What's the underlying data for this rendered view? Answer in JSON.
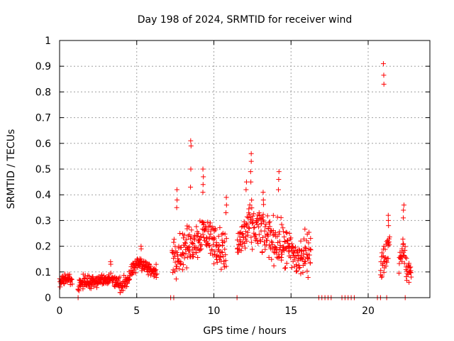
{
  "chart_data": {
    "type": "scatter",
    "title": "Day 198 of 2024, SRMTID for receiver wind",
    "xlabel": "GPS time / hours",
    "ylabel": "SRMTID / TECUs",
    "xlim": [
      0,
      24
    ],
    "ylim": [
      0,
      1
    ],
    "xticks": [
      0,
      5,
      10,
      15,
      20
    ],
    "xtick_labels": [
      "0",
      "5",
      "10",
      "15",
      "20"
    ],
    "yticks": [
      0,
      0.1,
      0.2,
      0.3,
      0.4,
      0.5,
      0.6,
      0.7,
      0.8,
      0.9,
      1
    ],
    "ytick_labels": [
      "0",
      "0.1",
      "0.2",
      "0.3",
      "0.4",
      "0.5",
      "0.6",
      "0.7",
      "0.8",
      "0.9",
      "1"
    ],
    "grid": true,
    "marker": "plus",
    "color": "#ff0000",
    "series": [
      {
        "name": "SRMTID",
        "profile": [
          [
            0.0,
            0.06
          ],
          [
            0.3,
            0.07
          ],
          [
            0.6,
            0.075
          ],
          [
            0.8,
            0.07
          ],
          [
            1.2,
            0.05
          ],
          [
            1.5,
            0.06
          ],
          [
            2.0,
            0.065
          ],
          [
            2.5,
            0.07
          ],
          [
            3.0,
            0.065
          ],
          [
            3.3,
            0.08
          ],
          [
            3.6,
            0.06
          ],
          [
            4.0,
            0.045
          ],
          [
            4.4,
            0.07
          ],
          [
            4.8,
            0.11
          ],
          [
            5.2,
            0.14
          ],
          [
            5.6,
            0.12
          ],
          [
            6.0,
            0.1
          ],
          [
            6.3,
            0.1
          ],
          [
            7.3,
            0.16
          ],
          [
            7.8,
            0.18
          ],
          [
            8.3,
            0.2
          ],
          [
            8.8,
            0.22
          ],
          [
            9.3,
            0.26
          ],
          [
            9.8,
            0.23
          ],
          [
            10.3,
            0.2
          ],
          [
            10.8,
            0.17
          ],
          [
            11.5,
            0.2
          ],
          [
            12.0,
            0.25
          ],
          [
            12.5,
            0.28
          ],
          [
            13.0,
            0.26
          ],
          [
            13.5,
            0.24
          ],
          [
            14.0,
            0.22
          ],
          [
            14.5,
            0.2
          ],
          [
            15.0,
            0.17
          ],
          [
            15.5,
            0.15
          ],
          [
            16.0,
            0.17
          ],
          [
            16.3,
            0.2
          ],
          [
            20.8,
            0.11
          ],
          [
            21.1,
            0.16
          ],
          [
            21.4,
            0.22
          ],
          [
            22.0,
            0.14
          ],
          [
            22.3,
            0.2
          ],
          [
            22.5,
            0.1
          ],
          [
            22.8,
            0.11
          ]
        ],
        "segments": [
          {
            "x0": 0.0,
            "x1": 0.8,
            "spread": 0.018
          },
          {
            "x0": 1.2,
            "x1": 6.3,
            "spread": 0.025
          },
          {
            "x0": 7.3,
            "x1": 10.8,
            "spread": 0.07
          },
          {
            "x0": 11.5,
            "x1": 16.3,
            "spread": 0.08
          },
          {
            "x0": 20.8,
            "x1": 21.4,
            "spread": 0.05
          },
          {
            "x0": 22.0,
            "x1": 22.8,
            "spread": 0.04
          }
        ],
        "spikes": [
          {
            "x": 8.5,
            "values": [
              0.61,
              0.59,
              0.5,
              0.43
            ]
          },
          {
            "x": 9.3,
            "values": [
              0.5,
              0.47,
              0.44,
              0.41
            ]
          },
          {
            "x": 7.6,
            "values": [
              0.42,
              0.38,
              0.35
            ]
          },
          {
            "x": 10.8,
            "values": [
              0.39,
              0.36,
              0.33
            ]
          },
          {
            "x": 12.4,
            "values": [
              0.56,
              0.53,
              0.49,
              0.45
            ]
          },
          {
            "x": 12.1,
            "values": [
              0.45,
              0.42
            ]
          },
          {
            "x": 14.2,
            "values": [
              0.49,
              0.46,
              0.42
            ]
          },
          {
            "x": 13.2,
            "values": [
              0.41,
              0.38
            ]
          },
          {
            "x": 21.0,
            "values": [
              0.91,
              0.865,
              0.83
            ]
          },
          {
            "x": 21.3,
            "values": [
              0.32,
              0.3,
              0.28
            ]
          },
          {
            "x": 22.3,
            "values": [
              0.36,
              0.34,
              0.31
            ]
          },
          {
            "x": 3.3,
            "values": [
              0.14,
              0.13
            ]
          },
          {
            "x": 5.3,
            "values": [
              0.2,
              0.19
            ]
          }
        ],
        "zeros": [
          1.2,
          7.2,
          7.4,
          11.5,
          16.8,
          17.0,
          17.2,
          17.4,
          17.6,
          18.3,
          18.5,
          18.7,
          18.9,
          19.1,
          20.6,
          20.8,
          21.2,
          22.4
        ]
      }
    ]
  }
}
